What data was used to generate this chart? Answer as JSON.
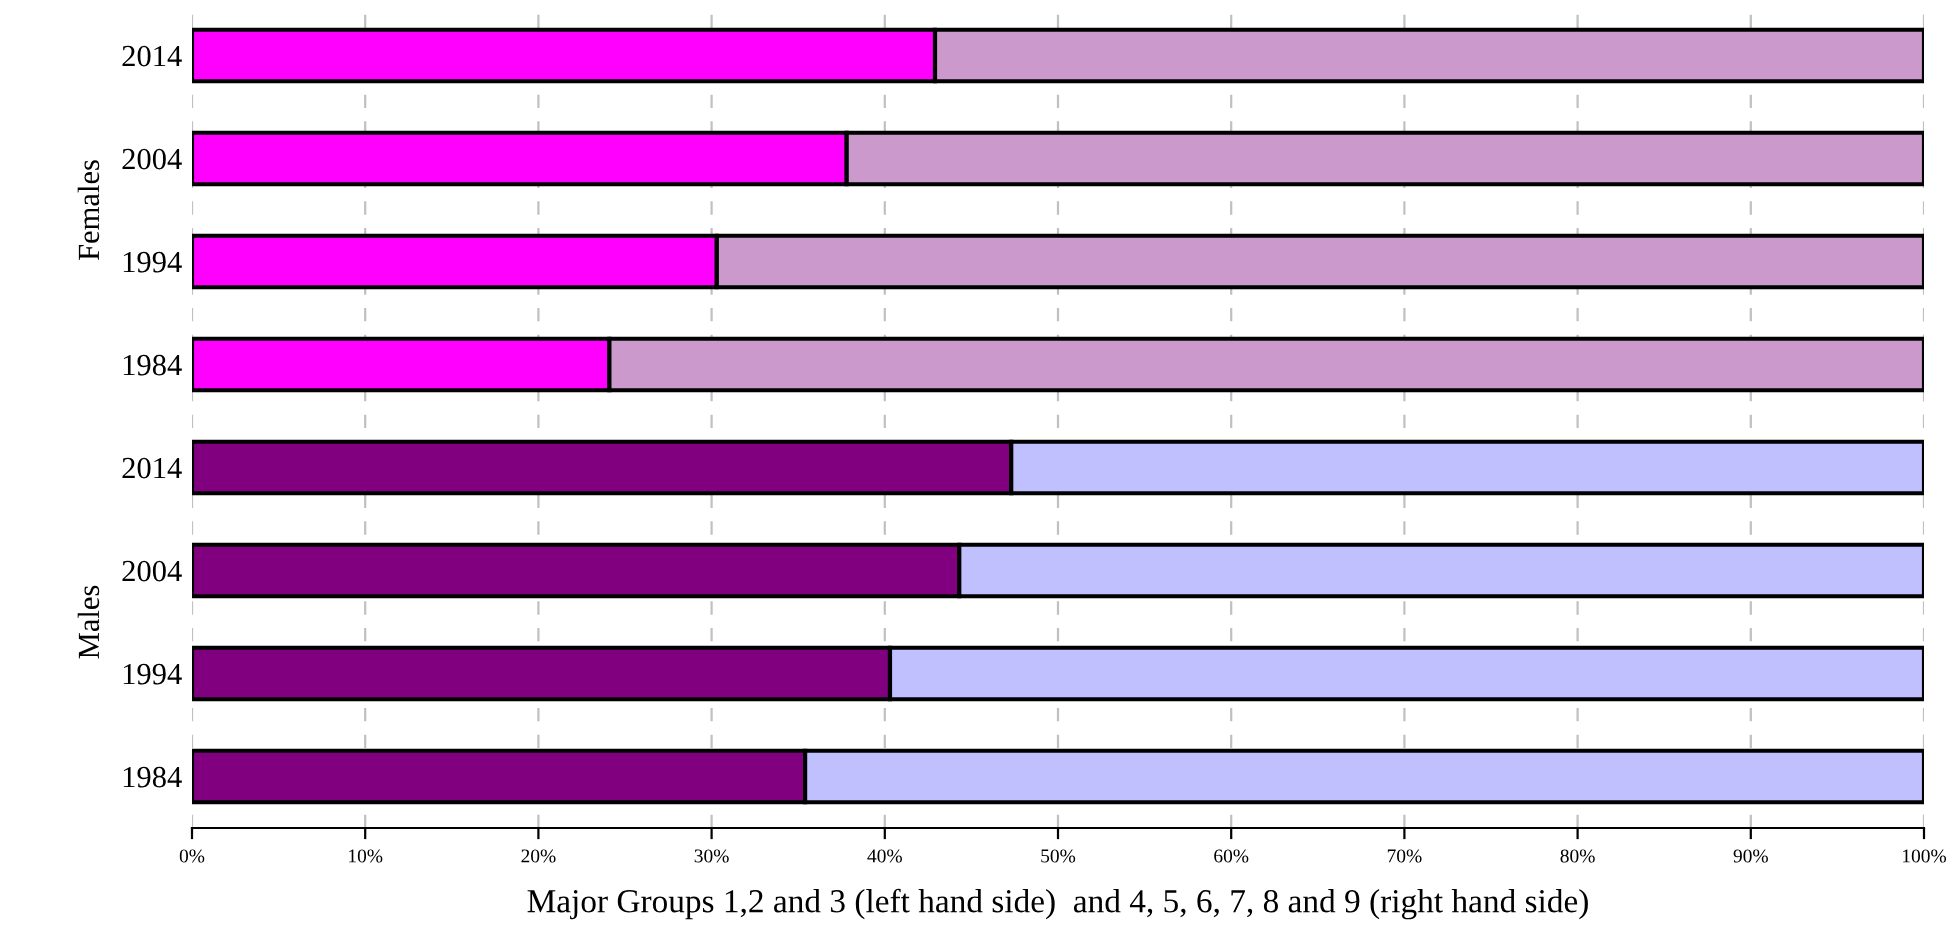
{
  "chart_data": {
    "type": "bar",
    "orientation": "horizontal",
    "stacked": true,
    "categories": [
      "2014",
      "2004",
      "1994",
      "1984",
      "2014",
      "2004",
      "1994",
      "1984"
    ],
    "series": [
      {
        "colors": [
          "#ff00ff",
          "#ff00ff",
          "#ff00ff",
          "#ff00ff",
          "#800080",
          "#800080",
          "#800080",
          "#800080"
        ],
        "values": [
          42.9,
          37.8,
          30.3,
          24.1,
          47.3,
          44.3,
          40.3,
          35.4
        ]
      },
      {
        "colors": [
          "#cc99cc",
          "#cc99cc",
          "#cc99cc",
          "#cc99cc",
          "#c0c0ff",
          "#c0c0ff",
          "#c0c0ff",
          "#c0c0ff"
        ],
        "values": [
          57.1,
          62.2,
          69.7,
          75.9,
          52.7,
          55.7,
          59.7,
          64.6
        ]
      }
    ],
    "xlabel": "Major Groups 1,2 and 3 (left hand side)  and 4, 5, 6, 7, 8 and 9 (right hand side)",
    "annotations": [
      "Females",
      "Males"
    ],
    "xlim": [
      0,
      100
    ],
    "xticks": [
      {
        "value": 0,
        "label": "0%"
      },
      {
        "value": 10,
        "label": "10%"
      },
      {
        "value": 20,
        "label": "20%"
      },
      {
        "value": 30,
        "label": "30%"
      },
      {
        "value": 40,
        "label": "40%"
      },
      {
        "value": 50,
        "label": "50%"
      },
      {
        "value": 60,
        "label": "60%"
      },
      {
        "value": 70,
        "label": "70%"
      },
      {
        "value": 80,
        "label": "80%"
      },
      {
        "value": 90,
        "label": "90%"
      },
      {
        "value": 100,
        "label": "100%"
      }
    ],
    "grid": "x",
    "legend": false
  }
}
